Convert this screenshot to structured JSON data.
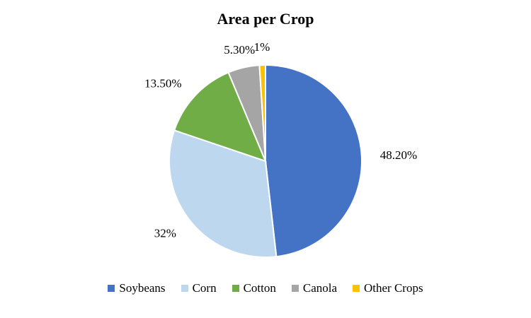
{
  "chart_data": {
    "type": "pie",
    "title": "Area per Crop",
    "categories": [
      "Soybeans",
      "Corn",
      "Cotton",
      "Canola",
      "Other Crops"
    ],
    "values": [
      48.2,
      32,
      13.5,
      5.3,
      1
    ],
    "data_labels": [
      "48.20%",
      "32%",
      "13.50%",
      "5.30%",
      "1%"
    ],
    "colors": [
      "#4472C4",
      "#BDD7EE",
      "#70AD47",
      "#A5A5A5",
      "#FFC000"
    ],
    "start_angle_deg": 0,
    "direction": "clockwise",
    "legend_position": "bottom",
    "slice_border_color": "#FFFFFF",
    "background_color": "#FFFFFF"
  }
}
